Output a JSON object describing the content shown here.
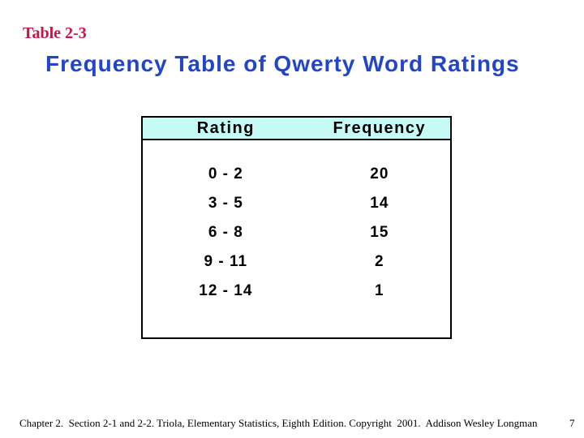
{
  "slide": {
    "table_label": "Table 2-3",
    "title": "Frequency Table of Qwerty Word Ratings"
  },
  "chart_data": {
    "type": "table",
    "title": "Frequency Table of Qwerty Word Ratings",
    "columns": [
      "Rating",
      "Frequency"
    ],
    "rows": [
      [
        "0 - 2",
        "20"
      ],
      [
        "3 - 5",
        "14"
      ],
      [
        "6 - 8",
        "15"
      ],
      [
        "9 - 11",
        "2"
      ],
      [
        "12 - 14",
        "1"
      ]
    ]
  },
  "footer": {
    "citation": "Chapter 2.  Section 2-1 and 2-2. Triola, Elementary Statistics, Eighth Edition. Copyright  2001.  Addison Wesley Longman",
    "page_number": "7"
  },
  "colors": {
    "label-red": "#C41744",
    "title-blue": "#2345C7",
    "header-cyan": "#C6FAF4"
  }
}
